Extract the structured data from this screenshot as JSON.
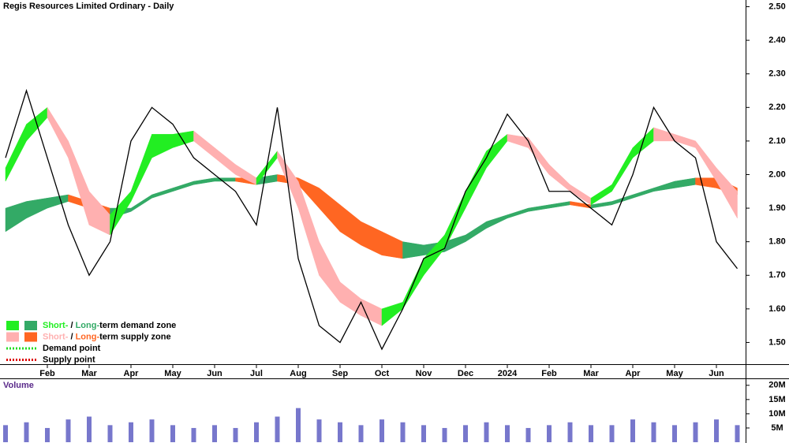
{
  "chart_data": {
    "type": "zone-chart",
    "title": "Regis Resources Limited Ordinary - Daily",
    "categories": [
      null,
      null,
      "Feb",
      null,
      "Mar",
      null,
      "Apr",
      null,
      "May",
      null,
      "Jun",
      null,
      "Jul",
      null,
      "Aug",
      null,
      "Sep",
      null,
      "Oct",
      null,
      "Nov",
      null,
      "Dec",
      null,
      "2024",
      null,
      "Feb",
      null,
      "Mar",
      null,
      "Apr",
      null,
      "May",
      null,
      "Jun",
      null
    ],
    "price": {
      "color": "#000000",
      "values": [
        2.05,
        2.25,
        2.05,
        1.85,
        1.7,
        1.8,
        2.1,
        2.2,
        2.15,
        2.05,
        2.0,
        1.95,
        1.85,
        2.2,
        1.75,
        1.55,
        1.5,
        1.62,
        1.48,
        1.6,
        1.75,
        1.78,
        1.95,
        2.05,
        2.18,
        2.1,
        1.95,
        1.95,
        1.9,
        1.85,
        2.0,
        2.2,
        2.1,
        2.05,
        1.8,
        1.72
      ]
    },
    "zones": [
      {
        "demand_color": "#22ee22",
        "supply_color": "#ffb0b0",
        "upper": [
          2.02,
          2.15,
          2.2,
          2.1,
          1.95,
          1.88,
          1.95,
          2.12,
          2.12,
          2.13,
          2.08,
          2.03,
          1.99,
          2.07,
          1.98,
          1.8,
          1.68,
          1.63,
          1.6,
          1.62,
          1.75,
          1.82,
          1.95,
          2.07,
          2.12,
          2.11,
          2.03,
          1.97,
          1.93,
          1.97,
          2.08,
          2.14,
          2.12,
          2.1,
          2.02,
          1.95
        ],
        "lower": [
          1.98,
          2.1,
          2.17,
          2.05,
          1.85,
          1.82,
          1.92,
          2.05,
          2.08,
          2.1,
          2.05,
          2.0,
          1.97,
          2.05,
          1.9,
          1.7,
          1.62,
          1.58,
          1.55,
          1.6,
          1.7,
          1.78,
          1.9,
          2.02,
          2.1,
          2.08,
          2.0,
          1.95,
          1.91,
          1.95,
          2.05,
          2.1,
          2.1,
          2.08,
          1.98,
          1.87
        ]
      },
      {
        "demand_color": "#33aa66",
        "supply_color": "#ff6622",
        "upper": [
          1.9,
          1.92,
          1.93,
          1.94,
          1.92,
          1.9,
          1.9,
          1.94,
          1.96,
          1.98,
          1.99,
          1.99,
          1.99,
          2.0,
          1.99,
          1.96,
          1.91,
          1.86,
          1.83,
          1.8,
          1.79,
          1.8,
          1.82,
          1.86,
          1.88,
          1.9,
          1.91,
          1.92,
          1.91,
          1.92,
          1.94,
          1.96,
          1.98,
          1.99,
          1.99,
          1.96
        ],
        "lower": [
          1.83,
          1.87,
          1.9,
          1.92,
          1.9,
          1.87,
          1.89,
          1.93,
          1.95,
          1.97,
          1.98,
          1.98,
          1.97,
          1.98,
          1.97,
          1.9,
          1.83,
          1.79,
          1.76,
          1.75,
          1.76,
          1.77,
          1.8,
          1.84,
          1.87,
          1.89,
          1.9,
          1.91,
          1.9,
          1.91,
          1.93,
          1.95,
          1.96,
          1.97,
          1.96,
          1.94
        ]
      }
    ],
    "ylim": [
      1.44,
      2.52
    ],
    "yticks": [
      {
        "value": 2.5,
        "label": "2.50"
      },
      {
        "value": 2.4,
        "label": "2.40"
      },
      {
        "value": 2.3,
        "label": "2.30"
      },
      {
        "value": 2.2,
        "label": "2.20"
      },
      {
        "value": 2.1,
        "label": "2.10"
      },
      {
        "value": 2.0,
        "label": "2.00"
      },
      {
        "value": 1.9,
        "label": "1.90"
      },
      {
        "value": 1.8,
        "label": "1.80"
      },
      {
        "value": 1.7,
        "label": "1.70"
      },
      {
        "value": 1.6,
        "label": "1.60"
      },
      {
        "value": 1.5,
        "label": "1.50"
      }
    ],
    "legend": [
      {
        "parts": [
          "Short-",
          " / ",
          "Long-",
          "term demand zone"
        ]
      },
      {
        "parts": [
          "Short-",
          " / ",
          "Long-",
          "term supply zone"
        ]
      },
      {
        "parts": [
          "Demand point"
        ],
        "color": "#22dd22"
      },
      {
        "parts": [
          "Supply point"
        ],
        "color": "#dd0000"
      }
    ],
    "volume": {
      "label": "Volume",
      "color": "#7777cc",
      "values": [
        6000000,
        7000000,
        5000000,
        8000000,
        9000000,
        6000000,
        7000000,
        8000000,
        6000000,
        5000000,
        6000000,
        5000000,
        7000000,
        9000000,
        12000000,
        8000000,
        7000000,
        6000000,
        8000000,
        7000000,
        6000000,
        5000000,
        6000000,
        7000000,
        6000000,
        5000000,
        6000000,
        7000000,
        6000000,
        6000000,
        8000000,
        7000000,
        6000000,
        7000000,
        8000000,
        6000000
      ],
      "ylim": [
        0,
        20500000
      ],
      "yticks": [
        {
          "value": 20000000,
          "label": "20M"
        },
        {
          "value": 15000000,
          "label": "15M"
        },
        {
          "value": 10000000,
          "label": "10M"
        },
        {
          "value": 5000000,
          "label": "5M"
        }
      ]
    }
  }
}
